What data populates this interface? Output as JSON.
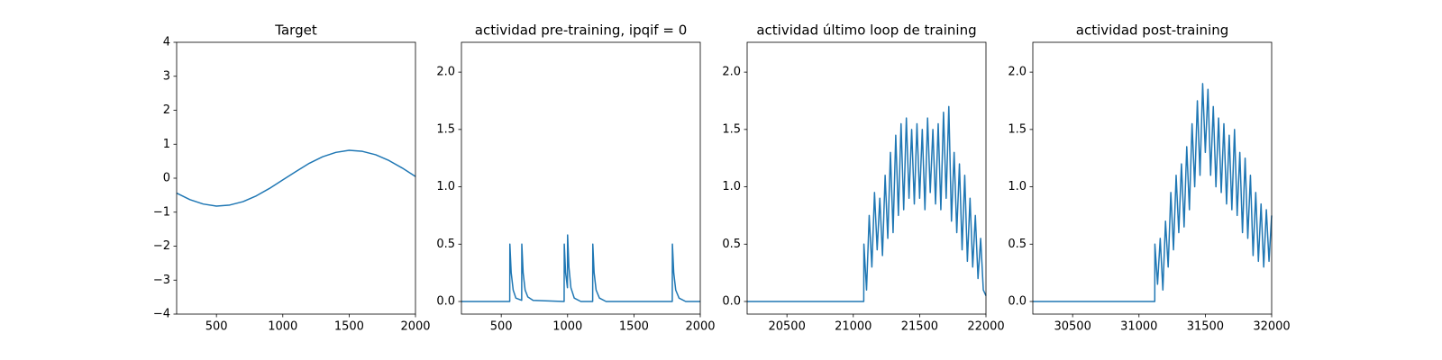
{
  "chart_data": [
    {
      "type": "line",
      "title": "Target",
      "x": [
        200,
        300,
        400,
        500,
        600,
        700,
        800,
        900,
        1000,
        1100,
        1200,
        1300,
        1400,
        1500,
        1600,
        1700,
        1800,
        1900,
        2000
      ],
      "series": [
        {
          "color": "#1f77b4",
          "values": [
            -0.44,
            -0.63,
            -0.76,
            -0.82,
            -0.79,
            -0.69,
            -0.52,
            -0.3,
            -0.05,
            0.2,
            0.44,
            0.63,
            0.76,
            0.82,
            0.79,
            0.69,
            0.52,
            0.3,
            0.05
          ]
        }
      ],
      "xlim": [
        200,
        2000
      ],
      "xticks": [
        500,
        1000,
        1500,
        2000
      ],
      "ylim": [
        -4,
        4
      ],
      "yticks": [
        {
          "value": -4,
          "label": "−4"
        },
        {
          "value": -3,
          "label": "−3"
        },
        {
          "value": -2,
          "label": "−2"
        },
        {
          "value": -1,
          "label": "−1"
        },
        0,
        1,
        2,
        3,
        4
      ]
    },
    {
      "type": "line",
      "title": "actividad pre-training, ipqif = 0",
      "x": [
        200,
        564,
        565,
        575,
        590,
        610,
        654,
        655,
        665,
        680,
        700,
        740,
        974,
        975,
        985,
        999,
        1000,
        1010,
        1025,
        1050,
        1100,
        1189,
        1190,
        1200,
        1215,
        1240,
        1290,
        1789,
        1790,
        1800,
        1815,
        1840,
        1890,
        2000
      ],
      "series": [
        {
          "color": "#1f77b4",
          "values": [
            0,
            0,
            0.5,
            0.25,
            0.1,
            0.03,
            0.01,
            0.5,
            0.25,
            0.1,
            0.04,
            0.01,
            0,
            0.5,
            0.25,
            0.12,
            0.58,
            0.3,
            0.12,
            0.03,
            0,
            0,
            0.5,
            0.25,
            0.1,
            0.03,
            0,
            0,
            0.5,
            0.25,
            0.1,
            0.03,
            0,
            0
          ]
        }
      ],
      "xlim": [
        200,
        2000
      ],
      "xticks": [
        500,
        1000,
        1500,
        2000
      ],
      "ylim": [
        -0.11,
        2.26
      ],
      "yticks": [
        {
          "value": 0,
          "label": "0.0"
        },
        {
          "value": 0.5,
          "label": "0.5"
        },
        {
          "value": 1,
          "label": "1.0"
        },
        {
          "value": 1.5,
          "label": "1.5"
        },
        {
          "value": 2,
          "label": "2.0"
        }
      ]
    },
    {
      "type": "line",
      "title": "actividad último loop de training",
      "x": [
        20200,
        21079,
        21080,
        21100,
        21120,
        21140,
        21160,
        21180,
        21200,
        21220,
        21240,
        21260,
        21280,
        21300,
        21320,
        21340,
        21360,
        21380,
        21400,
        21420,
        21440,
        21460,
        21480,
        21500,
        21520,
        21540,
        21560,
        21580,
        21600,
        21620,
        21640,
        21660,
        21680,
        21700,
        21720,
        21740,
        21760,
        21780,
        21800,
        21820,
        21840,
        21860,
        21880,
        21900,
        21920,
        21940,
        21960,
        21980,
        22000
      ],
      "series": [
        {
          "color": "#1f77b4",
          "values": [
            0,
            0,
            0.5,
            0.1,
            0.75,
            0.3,
            0.95,
            0.45,
            0.9,
            0.4,
            1.1,
            0.55,
            1.3,
            0.6,
            1.45,
            0.75,
            1.55,
            0.8,
            1.6,
            0.9,
            1.5,
            0.85,
            1.55,
            0.9,
            1.5,
            0.8,
            1.6,
            0.95,
            1.5,
            0.85,
            1.55,
            0.8,
            1.65,
            0.9,
            1.7,
            0.7,
            1.3,
            0.6,
            1.2,
            0.45,
            1.1,
            0.35,
            0.9,
            0.3,
            0.75,
            0.2,
            0.55,
            0.1,
            0.05
          ]
        }
      ],
      "xlim": [
        20200,
        22000
      ],
      "xticks": [
        20500,
        21000,
        21500,
        22000
      ],
      "ylim": [
        -0.11,
        2.26
      ],
      "yticks": [
        {
          "value": 0,
          "label": "0.0"
        },
        {
          "value": 0.5,
          "label": "0.5"
        },
        {
          "value": 1,
          "label": "1.0"
        },
        {
          "value": 1.5,
          "label": "1.5"
        },
        {
          "value": 2,
          "label": "2.0"
        }
      ]
    },
    {
      "type": "line",
      "title": "actividad post-training",
      "x": [
        30200,
        31119,
        31120,
        31140,
        31160,
        31180,
        31200,
        31220,
        31240,
        31260,
        31280,
        31300,
        31320,
        31340,
        31360,
        31380,
        31400,
        31420,
        31440,
        31460,
        31480,
        31500,
        31520,
        31540,
        31560,
        31580,
        31600,
        31620,
        31640,
        31660,
        31680,
        31700,
        31720,
        31740,
        31760,
        31780,
        31800,
        31820,
        31840,
        31860,
        31880,
        31900,
        31920,
        31940,
        31960,
        31980,
        32000
      ],
      "series": [
        {
          "color": "#1f77b4",
          "values": [
            0,
            0,
            0.5,
            0.15,
            0.55,
            0.1,
            0.7,
            0.3,
            0.95,
            0.45,
            1.1,
            0.6,
            1.2,
            0.65,
            1.35,
            0.8,
            1.55,
            1.0,
            1.75,
            1.1,
            1.9,
            1.3,
            1.85,
            1.1,
            1.7,
            1.0,
            1.6,
            0.95,
            1.55,
            0.85,
            1.45,
            0.8,
            1.5,
            0.75,
            1.3,
            0.6,
            1.25,
            0.55,
            1.1,
            0.4,
            0.95,
            0.35,
            0.85,
            0.3,
            0.8,
            0.35,
            0.75
          ]
        }
      ],
      "xlim": [
        30200,
        32000
      ],
      "xticks": [
        30500,
        31000,
        31500,
        32000
      ],
      "ylim": [
        -0.11,
        2.26
      ],
      "yticks": [
        {
          "value": 0,
          "label": "0.0"
        },
        {
          "value": 0.5,
          "label": "0.5"
        },
        {
          "value": 1,
          "label": "1.0"
        },
        {
          "value": 1.5,
          "label": "1.5"
        },
        {
          "value": 2,
          "label": "2.0"
        }
      ]
    }
  ]
}
